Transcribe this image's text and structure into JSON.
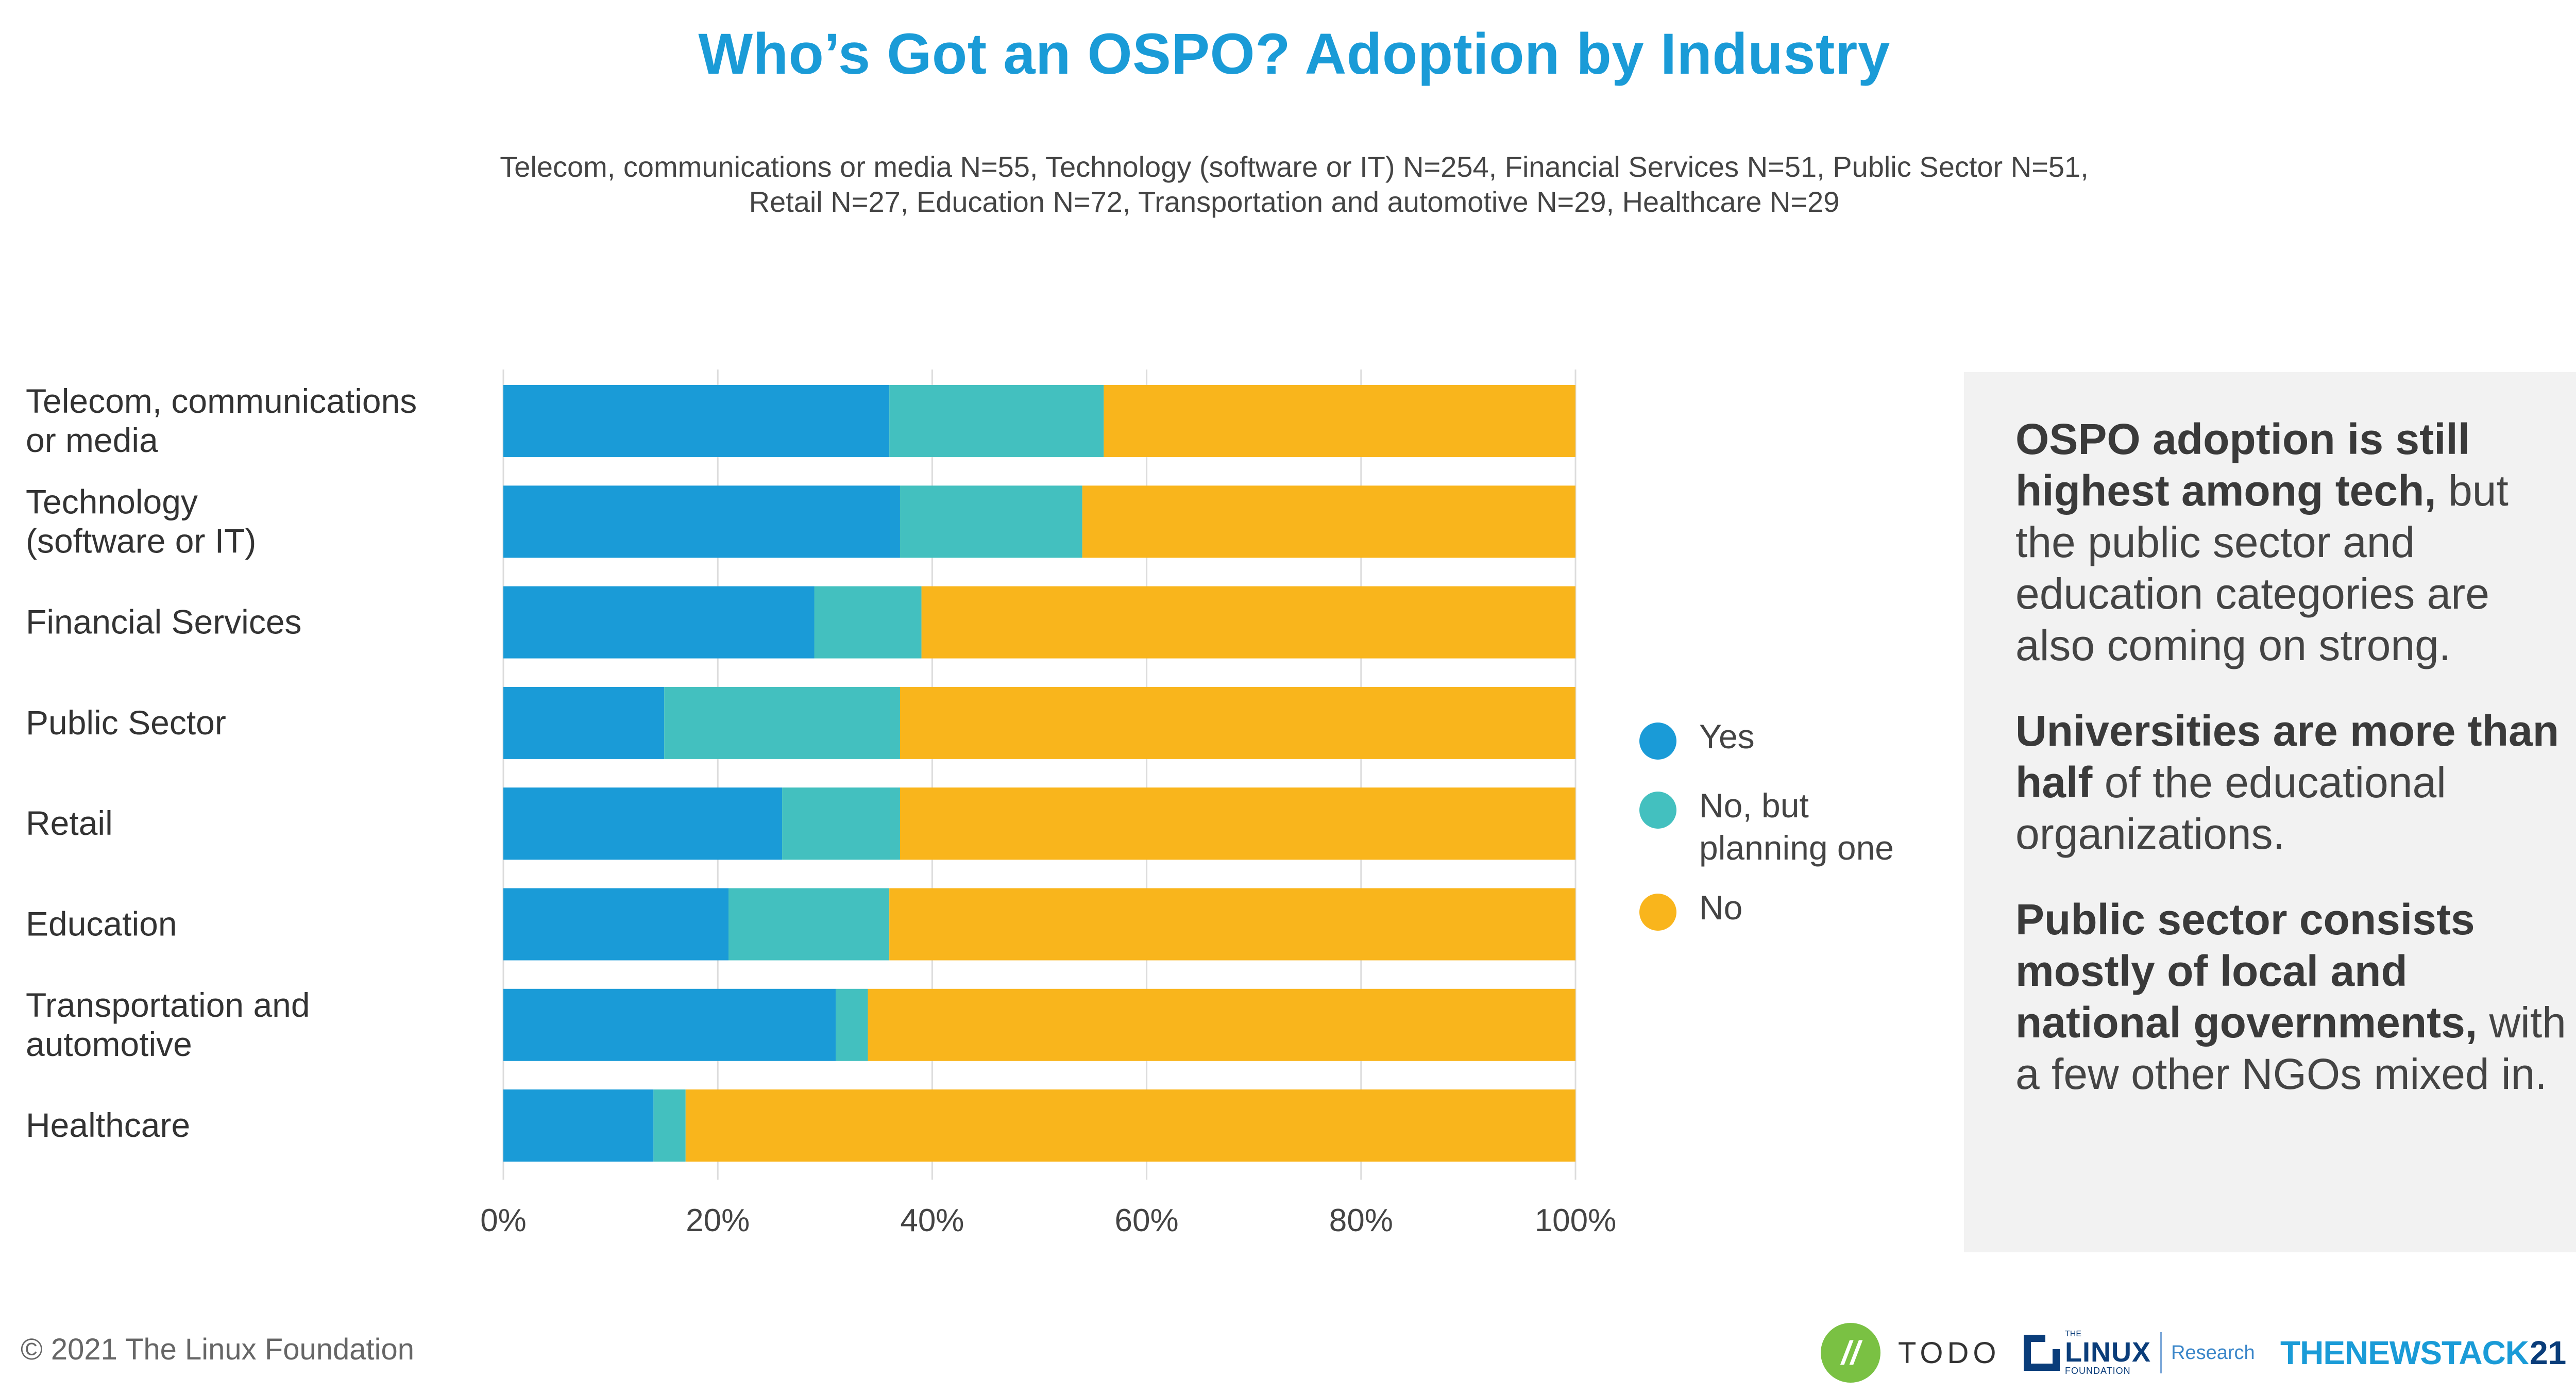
{
  "title": "Who’s Got an OSPO? Adoption by Industry",
  "subtitle_lines": [
    "Telecom, communications or media N=55, Technology (software or IT) N=254, Financial Services N=51, Public Sector N=51,",
    "Retail N=27, Education N=72, Transportation and automotive N=29, Healthcare N=29"
  ],
  "chart_data": {
    "type": "bar",
    "orientation": "horizontal",
    "stacked": true,
    "categories": [
      [
        "Telecom, communications",
        "or media"
      ],
      [
        "Technology",
        "(software or IT)"
      ],
      [
        "Financial Services"
      ],
      [
        "Public Sector"
      ],
      [
        "Retail"
      ],
      [
        "Education"
      ],
      [
        "Transportation and",
        "automotive"
      ],
      [
        "Healthcare"
      ]
    ],
    "series": [
      {
        "name": "Yes",
        "color": "#1a9bd7",
        "values": [
          36,
          37,
          29,
          15,
          26,
          21,
          31,
          14
        ]
      },
      {
        "name": "No, but planning one",
        "color": "#43c0bf",
        "values": [
          20,
          17,
          10,
          22,
          11,
          15,
          3,
          3
        ]
      },
      {
        "name": "No",
        "color": "#f9b51c",
        "values": [
          44,
          46,
          61,
          63,
          63,
          64,
          66,
          83
        ]
      }
    ],
    "legend_labels": [
      [
        "Yes"
      ],
      [
        "No, but",
        "planning one"
      ],
      [
        "No"
      ]
    ],
    "xlim": [
      0,
      100
    ],
    "xticks": [
      "0%",
      "20%",
      "40%",
      "60%",
      "80%",
      "100%"
    ],
    "legend_position": "right"
  },
  "panel": {
    "p1_bold": "OSPO adoption is still highest among tech,",
    "p1_rest": "but the public sector and education categories are also coming on strong.",
    "p2_bold": "Universities are more than half",
    "p2_rest": "of the educational organizations.",
    "p3_bold": "Public sector consists mostly of local and national governments,",
    "p3_rest": "with a few other NGOs mixed in."
  },
  "footer": {
    "copyright": "© 2021 The Linux Foundation",
    "todo_mark": "//",
    "todo_label": "TODO",
    "lf_the": "THE",
    "lf_linux": "LINUX",
    "lf_foundation": "FOUNDATION",
    "lf_research": "Research",
    "tns": "THENEWSTACK",
    "page_number": "21"
  }
}
